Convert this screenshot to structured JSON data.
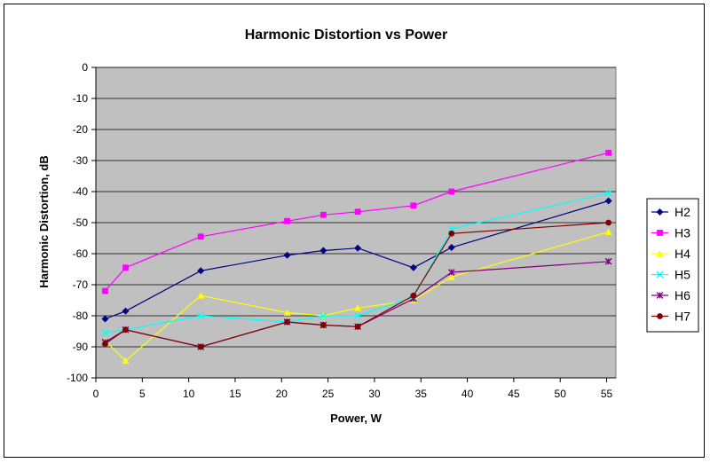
{
  "chart_data": {
    "type": "line",
    "title": "Harmonic Distortion vs Power",
    "xlabel": "Power, W",
    "ylabel": "Harmonic Distortion, dB",
    "xlim": [
      0,
      56
    ],
    "ylim": [
      -100,
      0
    ],
    "xticks": [
      0,
      5,
      10,
      15,
      20,
      25,
      30,
      35,
      40,
      45,
      50,
      55
    ],
    "yticks": [
      0,
      -10,
      -20,
      -30,
      -40,
      -50,
      -60,
      -70,
      -80,
      -90,
      -100
    ],
    "grid": "horizontal",
    "legend_position": "right",
    "x": [
      1.0,
      3.2,
      11.3,
      20.6,
      24.5,
      28.2,
      34.2,
      38.3,
      55.2
    ],
    "series": [
      {
        "name": "H2",
        "color": "#000080",
        "marker": "diamond",
        "values": [
          -81,
          -78.5,
          -65.5,
          -60.5,
          -59,
          -58.2,
          -64.5,
          -58,
          -43
        ]
      },
      {
        "name": "H3",
        "color": "#FF00FF",
        "marker": "square",
        "values": [
          -72,
          -64.5,
          -54.5,
          -49.5,
          -47.5,
          -46.5,
          -44.5,
          -40,
          -27.5
        ]
      },
      {
        "name": "H4",
        "color": "#FFFF00",
        "marker": "triangle",
        "values": [
          -88,
          -94.5,
          -73.5,
          -79,
          -80,
          -77.5,
          -75,
          -67.5,
          -53
        ]
      },
      {
        "name": "H5",
        "color": "#00FFFF",
        "marker": "x",
        "values": [
          -85.5,
          -84.5,
          -80,
          -82,
          -80,
          -80,
          -74,
          -52,
          -40.5
        ]
      },
      {
        "name": "H6",
        "color": "#800080",
        "marker": "star",
        "values": [
          -88.5,
          -84.5,
          -90,
          -82,
          -83,
          -83.5,
          -74.5,
          -66,
          -62.5
        ]
      },
      {
        "name": "H7",
        "color": "#800000",
        "marker": "circle",
        "values": [
          -89,
          -84.5,
          -90,
          -82,
          -83,
          -83.5,
          -73.5,
          -53.5,
          -50
        ]
      }
    ]
  },
  "colors": {
    "plot_background": "#C0C0C0",
    "gridline": "#000000"
  }
}
